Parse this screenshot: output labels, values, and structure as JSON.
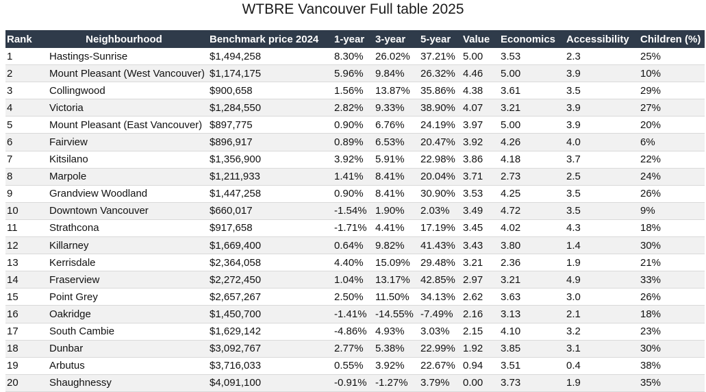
{
  "title": "WTBRE Vancouver Full table 2025",
  "table": {
    "headers": [
      "Rank",
      "Neighbourhood",
      "Benchmark price 2024",
      "1-year",
      "3-year",
      "5-year",
      "Value",
      "Economics",
      "Accessibility",
      "Children (%)"
    ],
    "rows": [
      [
        "1",
        "Hastings-Sunrise",
        "$1,494,258",
        "8.30%",
        "26.02%",
        "37.21%",
        "5.00",
        "3.53",
        "2.3",
        "25%"
      ],
      [
        "2",
        "Mount Pleasant (West Vancouver)",
        "$1,174,175",
        "5.96%",
        "9.84%",
        "26.32%",
        "4.46",
        "5.00",
        "3.9",
        "10%"
      ],
      [
        "3",
        "Collingwood",
        "$900,658",
        "1.56%",
        "13.87%",
        "35.86%",
        "4.38",
        "3.61",
        "3.5",
        "29%"
      ],
      [
        "4",
        "Victoria",
        "$1,284,550",
        "2.82%",
        "9.33%",
        "38.90%",
        "4.07",
        "3.21",
        "3.9",
        "27%"
      ],
      [
        "5",
        "Mount Pleasant (East Vancouver)",
        "$897,775",
        "0.90%",
        "6.76%",
        "24.19%",
        "3.97",
        "5.00",
        "3.9",
        "20%"
      ],
      [
        "6",
        "Fairview",
        "$896,917",
        "0.89%",
        "6.53%",
        "20.47%",
        "3.92",
        "4.26",
        "4.0",
        "6%"
      ],
      [
        "7",
        "Kitsilano",
        "$1,356,900",
        "3.92%",
        "5.91%",
        "22.98%",
        "3.86",
        "4.18",
        "3.7",
        "22%"
      ],
      [
        "8",
        "Marpole",
        "$1,211,933",
        "1.41%",
        "8.41%",
        "20.04%",
        "3.71",
        "2.73",
        "2.5",
        "24%"
      ],
      [
        "9",
        "Grandview Woodland",
        "$1,447,258",
        "0.90%",
        "8.41%",
        "30.90%",
        "3.53",
        "4.25",
        "3.5",
        "26%"
      ],
      [
        "10",
        "Downtown Vancouver",
        "$660,017",
        "-1.54%",
        "1.90%",
        "2.03%",
        "3.49",
        "4.72",
        "3.5",
        "9%"
      ],
      [
        "11",
        "Strathcona",
        "$917,658",
        "-1.71%",
        "4.41%",
        "17.19%",
        "3.45",
        "4.02",
        "4.3",
        "18%"
      ],
      [
        "12",
        "Killarney",
        "$1,669,400",
        "0.64%",
        "9.82%",
        "41.43%",
        "3.43",
        "3.80",
        "1.4",
        "30%"
      ],
      [
        "13",
        "Kerrisdale",
        "$2,364,058",
        "4.40%",
        "15.09%",
        "29.48%",
        "3.21",
        "2.36",
        "1.9",
        "21%"
      ],
      [
        "14",
        "Fraserview",
        "$2,272,450",
        "1.04%",
        "13.17%",
        "42.85%",
        "2.97",
        "3.21",
        "4.9",
        "33%"
      ],
      [
        "15",
        "Point Grey",
        "$2,657,267",
        "2.50%",
        "11.50%",
        "34.13%",
        "2.62",
        "3.63",
        "3.0",
        "26%"
      ],
      [
        "16",
        "Oakridge",
        "$1,450,700",
        "-1.41%",
        "-14.55%",
        "-7.49%",
        "2.16",
        "3.13",
        "2.1",
        "18%"
      ],
      [
        "17",
        "South Cambie",
        "$1,629,142",
        "-4.86%",
        "4.93%",
        "3.03%",
        "2.15",
        "4.10",
        "3.2",
        "23%"
      ],
      [
        "18",
        "Dunbar",
        "$3,092,767",
        "2.77%",
        "5.38%",
        "22.99%",
        "1.92",
        "3.85",
        "3.1",
        "30%"
      ],
      [
        "19",
        "Arbutus",
        "$3,716,033",
        "0.55%",
        "3.92%",
        "22.67%",
        "0.94",
        "3.51",
        "0.4",
        "38%"
      ],
      [
        "20",
        "Shaughnessy",
        "$4,091,100",
        "-0.91%",
        "-1.27%",
        "3.79%",
        "0.00",
        "3.73",
        "1.9",
        "35%"
      ]
    ]
  }
}
